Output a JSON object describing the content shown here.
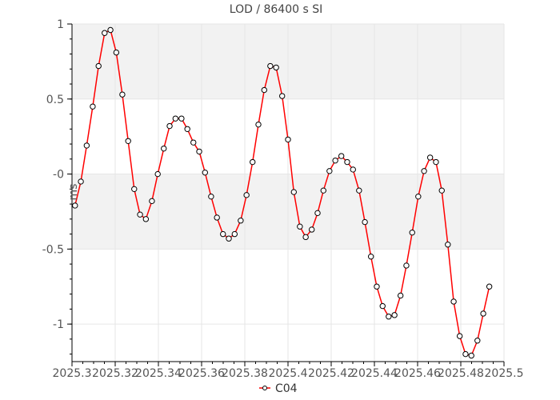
{
  "chart_data": {
    "type": "line",
    "title": "LOD / 86400 s SI",
    "xlabel": "",
    "ylabel": "ms",
    "xlim": [
      2025.3,
      2025.5
    ],
    "ylim": [
      -1.25,
      1.0
    ],
    "x_ticks": [
      2025.3,
      2025.32,
      2025.34,
      2025.36,
      2025.38,
      2025.4,
      2025.42,
      2025.44,
      2025.46,
      2025.48,
      2025.5
    ],
    "x_tick_labels": [
      "2025.3",
      "2025.32",
      "2025.34",
      "2025.36",
      "2025.38",
      "2025.4",
      "2025.42",
      "2025.44",
      "2025.46",
      "2025.48",
      "2025.5"
    ],
    "y_ticks": [
      1.0,
      0.5,
      0.0,
      -0.5,
      -1.0
    ],
    "y_tick_labels": [
      "1",
      "0.5",
      "-0",
      "-0.5",
      "-1"
    ],
    "grid": true,
    "bands": [
      [
        0.5,
        1.0
      ],
      [
        -0.5,
        0.0
      ]
    ],
    "legend_position": "bottom-center",
    "colors": {
      "line": "#ff0000",
      "marker_fill": "#ffffff",
      "marker_stroke": "#000000",
      "band": "#f2f2f2",
      "grid": "#e6e6e6"
    },
    "series": [
      {
        "name": "C04",
        "x": [
          2025.3014,
          2025.3041,
          2025.3068,
          2025.3096,
          2025.3123,
          2025.3151,
          2025.3178,
          2025.3205,
          2025.3233,
          2025.326,
          2025.3288,
          2025.3315,
          2025.3342,
          2025.337,
          2025.3397,
          2025.3425,
          2025.3452,
          2025.3479,
          2025.3507,
          2025.3534,
          2025.3562,
          2025.3589,
          2025.3616,
          2025.3644,
          2025.3671,
          2025.3699,
          2025.3726,
          2025.3753,
          2025.3781,
          2025.3808,
          2025.3836,
          2025.3863,
          2025.389,
          2025.3918,
          2025.3945,
          2025.3973,
          2025.4,
          2025.4027,
          2025.4055,
          2025.4082,
          2025.411,
          2025.4137,
          2025.4164,
          2025.4192,
          2025.4219,
          2025.4247,
          2025.4274,
          2025.4301,
          2025.4329,
          2025.4356,
          2025.4384,
          2025.4411,
          2025.4438,
          2025.4466,
          2025.4493,
          2025.4521,
          2025.4548,
          2025.4575,
          2025.4603,
          2025.463,
          2025.4658,
          2025.4685,
          2025.4712,
          2025.474,
          2025.4767,
          2025.4795,
          2025.4822,
          2025.4849,
          2025.4877,
          2025.4904,
          2025.4932
        ],
        "y": [
          -0.21,
          -0.05,
          0.19,
          0.45,
          0.72,
          0.94,
          0.96,
          0.81,
          0.53,
          0.22,
          -0.1,
          -0.27,
          -0.3,
          -0.18,
          0.0,
          0.17,
          0.32,
          0.37,
          0.37,
          0.3,
          0.21,
          0.15,
          0.01,
          -0.15,
          -0.29,
          -0.4,
          -0.43,
          -0.4,
          -0.31,
          -0.14,
          0.08,
          0.33,
          0.56,
          0.72,
          0.71,
          0.52,
          0.23,
          -0.12,
          -0.35,
          -0.42,
          -0.37,
          -0.26,
          -0.11,
          0.02,
          0.09,
          0.12,
          0.08,
          0.03,
          -0.11,
          -0.32,
          -0.55,
          -0.75,
          -0.88,
          -0.95,
          -0.94,
          -0.81,
          -0.61,
          -0.39,
          -0.15,
          0.02,
          0.11,
          0.08,
          -0.11,
          -0.47,
          -0.85,
          -1.08,
          -1.2,
          -1.21,
          -1.11,
          -0.93,
          -0.75
        ]
      }
    ]
  }
}
